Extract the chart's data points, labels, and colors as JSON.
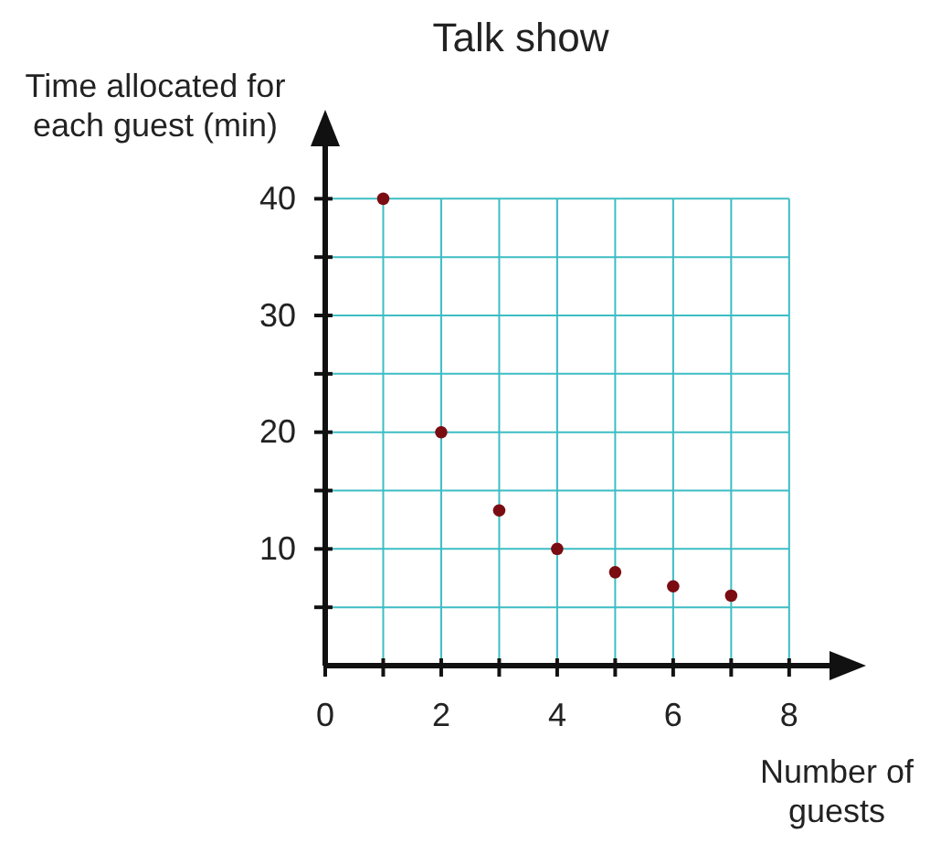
{
  "chart_data": {
    "type": "scatter",
    "title": "Talk show",
    "xlabel": "Number of guests",
    "ylabel": "Time allocated for each guest (min)",
    "x": [
      1,
      2,
      3,
      4,
      5,
      6,
      7
    ],
    "series": [
      {
        "color": "#7a0c12",
        "values": [
          40,
          20,
          13.3,
          10,
          8,
          6.8,
          6
        ]
      }
    ],
    "xlim": [
      0,
      9.2
    ],
    "ylim": [
      0,
      47
    ],
    "xticks": [
      0,
      {
        "value": 1,
        "label": null
      },
      2,
      {
        "value": 3,
        "label": null
      },
      4,
      {
        "value": 5,
        "label": null
      },
      6,
      {
        "value": 7,
        "label": null
      },
      8
    ],
    "yticks": [
      {
        "value": 5,
        "label": null
      },
      10,
      {
        "value": 15,
        "label": null
      },
      20,
      {
        "value": 25,
        "label": null
      },
      30,
      {
        "value": 35,
        "label": null
      },
      40
    ],
    "grid": true,
    "marker": "circle"
  }
}
